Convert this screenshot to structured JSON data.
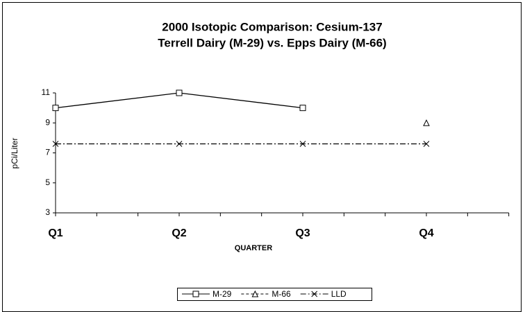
{
  "chart_data": {
    "type": "line",
    "title": [
      "2000 Isotopic Comparison: Cesium-137",
      "Terrell Dairy (M-29) vs. Epps Dairy (M-66)"
    ],
    "x_label": "QUARTER",
    "y_label": "pCi/Liter",
    "categories": [
      "Q1",
      "Q2",
      "Q3",
      "Q4"
    ],
    "series": [
      {
        "name": "M-29",
        "color": "#000000",
        "marker": "square",
        "dash": "solid",
        "values": [
          10,
          11,
          10,
          null
        ]
      },
      {
        "name": "M-66",
        "color": "#000000",
        "marker": "triangle",
        "dash": "dashed",
        "values": [
          null,
          null,
          null,
          9
        ]
      },
      {
        "name": "LLD",
        "color": "#000000",
        "marker": "x",
        "dash": "dashdot",
        "values": [
          7.6,
          7.6,
          7.6,
          7.6
        ]
      }
    ],
    "ylim": [
      3,
      11
    ],
    "yticks": [
      3,
      5,
      7,
      9,
      11
    ],
    "grid": false,
    "legend": "bottom"
  }
}
